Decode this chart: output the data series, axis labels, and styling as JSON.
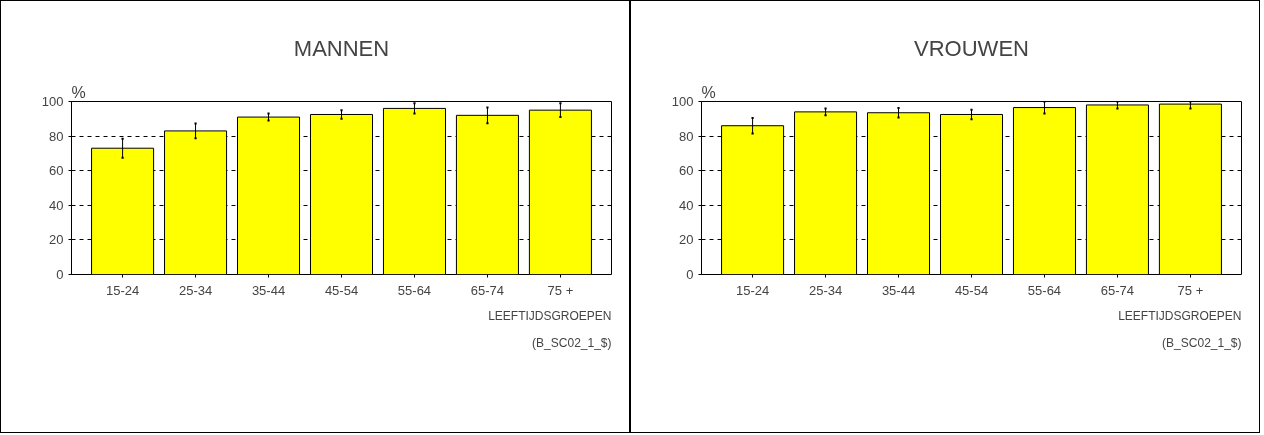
{
  "chart_data": [
    {
      "type": "bar",
      "title": "MANNEN",
      "ylabel": "%",
      "xlabel": "LEEFTIJDSGROEPEN",
      "categories": [
        "15-24",
        "25-34",
        "35-44",
        "45-54",
        "55-64",
        "65-74",
        "75 +"
      ],
      "series": [
        {
          "color": "#ffff00",
          "values": [
            73,
            83,
            91,
            92.5,
            96,
            92,
            95
          ],
          "errors": [
            5.5,
            4.3,
            2,
            2.5,
            3,
            4.5,
            4
          ]
        }
      ],
      "ylim": [
        0,
        100
      ],
      "yticks": [
        0,
        20,
        40,
        60,
        80,
        100
      ],
      "grid": "y",
      "annotations": [
        "(B_SC02_1_$)"
      ]
    },
    {
      "type": "bar",
      "title": "VROUWEN",
      "ylabel": "%",
      "xlabel": "LEEFTIJDSGROEPEN",
      "categories": [
        "15-24",
        "25-34",
        "35-44",
        "45-54",
        "55-64",
        "65-74",
        "75 +"
      ],
      "series": [
        {
          "color": "#ffff00",
          "values": [
            86,
            94,
            93.5,
            92.5,
            96.5,
            98,
            98.5
          ],
          "errors": [
            4.5,
            2,
            2.7,
            2.7,
            3.5,
            2,
            [
              96,
              100
            ]
          ]
        }
      ],
      "ylim": [
        0,
        100
      ],
      "yticks": [
        0,
        20,
        40,
        60,
        80,
        100
      ],
      "grid": "y",
      "annotations": [
        "(B_SC02_1_$)"
      ]
    }
  ]
}
